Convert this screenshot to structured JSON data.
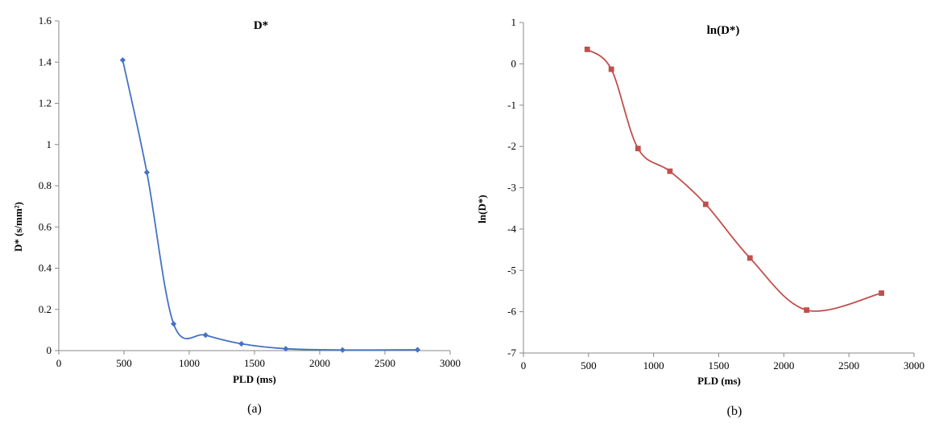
{
  "colors": {
    "series_a": "#4472C4",
    "series_b": "#C0504D",
    "axis": "#888888"
  },
  "chart_data": [
    {
      "type": "line",
      "title": "D*",
      "xlabel": "PLD (ms)",
      "ylabel": "D* (s/mm²)",
      "caption": "(a)",
      "xlim": [
        0,
        3000
      ],
      "ylim": [
        0,
        1.6
      ],
      "xticks": [
        "0",
        "500",
        "1000",
        "1500",
        "2000",
        "2500",
        "3000"
      ],
      "yticks": [
        "0",
        "0.2",
        "0.4",
        "0.6",
        "0.8",
        "1",
        "1.2",
        "1.4",
        "1.6"
      ],
      "marker": "diamond",
      "smooth": true,
      "series": [
        {
          "x": [
            490,
            675,
            880,
            1125,
            1400,
            1740,
            2175,
            2750
          ],
          "values": [
            1.41,
            0.865,
            0.13,
            0.075,
            0.033,
            0.009,
            0.003,
            0.004
          ]
        }
      ]
    },
    {
      "type": "line",
      "title": "ln(D*)",
      "xlabel": "PLD (ms)",
      "ylabel": "ln(D*)",
      "caption": "(b)",
      "xlim": [
        0,
        3000
      ],
      "ylim": [
        -7,
        1
      ],
      "xticks": [
        "0",
        "500",
        "1000",
        "1500",
        "2000",
        "2500",
        "3000"
      ],
      "yticks": [
        "-7",
        "-6",
        "-5",
        "-4",
        "-3",
        "-2",
        "-1",
        "0",
        "1"
      ],
      "marker": "square",
      "smooth": true,
      "series": [
        {
          "x": [
            490,
            675,
            880,
            1125,
            1400,
            1740,
            2175,
            2750
          ],
          "values": [
            0.35,
            -0.13,
            -2.05,
            -2.6,
            -3.4,
            -4.7,
            -5.96,
            -5.55
          ]
        }
      ]
    }
  ]
}
